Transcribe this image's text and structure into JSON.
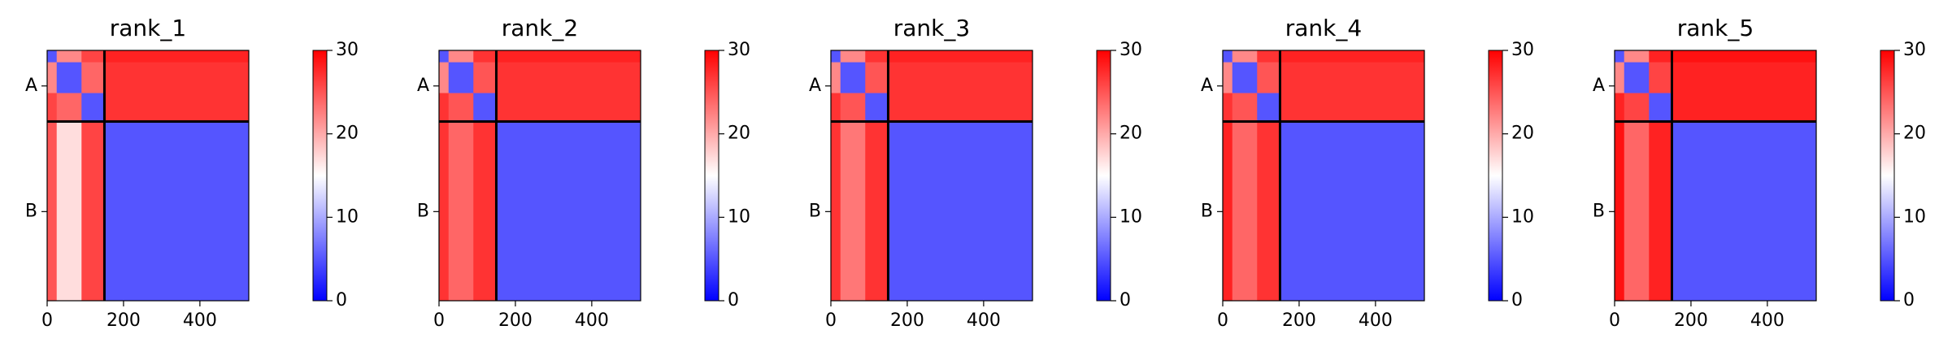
{
  "chart_data": [
    {
      "type": "heatmap",
      "title": "rank_1",
      "x_edges": [
        0,
        25,
        90,
        150,
        528
      ],
      "y_edges": [
        0,
        25,
        90,
        150,
        528
      ],
      "values": [
        [
          5,
          22,
          26,
          28
        ],
        [
          22,
          5,
          24,
          27
        ],
        [
          26,
          24,
          5,
          27
        ],
        [
          25,
          17,
          26,
          5
        ]
      ],
      "chain_breaks": [
        150
      ],
      "xlim": [
        0,
        528
      ],
      "ylim": [
        528,
        0
      ],
      "xticks": [
        0,
        200,
        400
      ],
      "yticks": [
        {
          "value": 75,
          "label": "A"
        },
        {
          "value": 340,
          "label": "B"
        }
      ],
      "clim": [
        0,
        30
      ],
      "cticks": [
        0,
        10,
        20,
        30
      ],
      "colormap": [
        "#0000ff",
        "#ffffff",
        "#ff0000"
      ]
    },
    {
      "type": "heatmap",
      "title": "rank_2",
      "x_edges": [
        0,
        25,
        90,
        150,
        528
      ],
      "y_edges": [
        0,
        25,
        90,
        150,
        528
      ],
      "values": [
        [
          5,
          22,
          27,
          28
        ],
        [
          22,
          5,
          25,
          27
        ],
        [
          27,
          25,
          5,
          27
        ],
        [
          27,
          24,
          27,
          5
        ]
      ],
      "chain_breaks": [
        150
      ],
      "xlim": [
        0,
        528
      ],
      "ylim": [
        528,
        0
      ],
      "xticks": [
        0,
        200,
        400
      ],
      "yticks": [
        {
          "value": 75,
          "label": "A"
        },
        {
          "value": 340,
          "label": "B"
        }
      ],
      "clim": [
        0,
        30
      ],
      "cticks": [
        0,
        10,
        20,
        30
      ],
      "colormap": [
        "#0000ff",
        "#ffffff",
        "#ff0000"
      ]
    },
    {
      "type": "heatmap",
      "title": "rank_3",
      "x_edges": [
        0,
        25,
        90,
        150,
        528
      ],
      "y_edges": [
        0,
        25,
        90,
        150,
        528
      ],
      "values": [
        [
          5,
          22,
          27,
          28
        ],
        [
          22,
          5,
          25,
          27
        ],
        [
          27,
          25,
          5,
          27
        ],
        [
          27,
          23,
          27,
          5
        ]
      ],
      "chain_breaks": [
        150
      ],
      "xlim": [
        0,
        528
      ],
      "ylim": [
        528,
        0
      ],
      "xticks": [
        0,
        200,
        400
      ],
      "yticks": [
        {
          "value": 75,
          "label": "A"
        },
        {
          "value": 340,
          "label": "B"
        }
      ],
      "clim": [
        0,
        30
      ],
      "cticks": [
        0,
        10,
        20,
        30
      ],
      "colormap": [
        "#0000ff",
        "#ffffff",
        "#ff0000"
      ]
    },
    {
      "type": "heatmap",
      "title": "rank_4",
      "x_edges": [
        0,
        25,
        90,
        150,
        528
      ],
      "y_edges": [
        0,
        25,
        90,
        150,
        528
      ],
      "values": [
        [
          5,
          22,
          27,
          28
        ],
        [
          22,
          5,
          25,
          27
        ],
        [
          27,
          25,
          5,
          27
        ],
        [
          28,
          24,
          27,
          5
        ]
      ],
      "chain_breaks": [
        150
      ],
      "xlim": [
        0,
        528
      ],
      "ylim": [
        528,
        0
      ],
      "xticks": [
        0,
        200,
        400
      ],
      "yticks": [
        {
          "value": 75,
          "label": "A"
        },
        {
          "value": 340,
          "label": "B"
        }
      ],
      "clim": [
        0,
        30
      ],
      "cticks": [
        0,
        10,
        20,
        30
      ],
      "colormap": [
        "#0000ff",
        "#ffffff",
        "#ff0000"
      ]
    },
    {
      "type": "heatmap",
      "title": "rank_5",
      "x_edges": [
        0,
        25,
        90,
        150,
        528
      ],
      "y_edges": [
        0,
        25,
        90,
        150,
        528
      ],
      "values": [
        [
          5,
          22,
          28,
          29
        ],
        [
          22,
          5,
          26,
          28
        ],
        [
          28,
          26,
          5,
          28
        ],
        [
          29,
          24,
          28,
          5
        ]
      ],
      "chain_breaks": [
        150
      ],
      "xlim": [
        0,
        528
      ],
      "ylim": [
        528,
        0
      ],
      "xticks": [
        0,
        200,
        400
      ],
      "yticks": [
        {
          "value": 75,
          "label": "A"
        },
        {
          "value": 340,
          "label": "B"
        }
      ],
      "clim": [
        0,
        30
      ],
      "cticks": [
        0,
        10,
        20,
        30
      ],
      "colormap": [
        "#0000ff",
        "#ffffff",
        "#ff0000"
      ]
    }
  ]
}
